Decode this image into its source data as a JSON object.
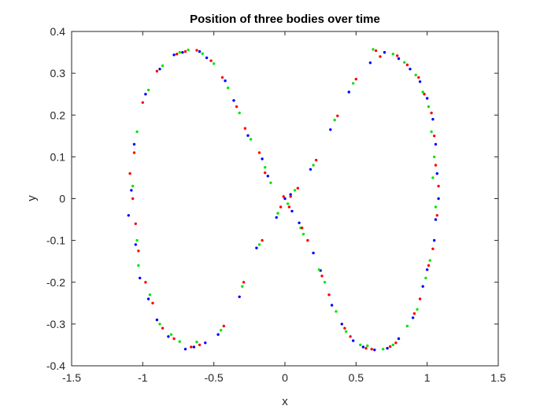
{
  "chart_data": {
    "type": "scatter",
    "title": "Position of three bodies over time",
    "xlabel": "x",
    "ylabel": "y",
    "xlim": [
      -1.5,
      1.5
    ],
    "ylim": [
      -0.4,
      0.4
    ],
    "xticks": [
      -1.5,
      -1,
      -0.5,
      0,
      0.5,
      1,
      1.5
    ],
    "xtick_labels": [
      "-1.5",
      "-1",
      "-0.5",
      "0",
      "0.5",
      "1",
      "1.5"
    ],
    "yticks": [
      -0.4,
      -0.3,
      -0.2,
      -0.1,
      0,
      0.1,
      0.2,
      0.3,
      0.4
    ],
    "ytick_labels": [
      "-0.4",
      "-0.3",
      "-0.2",
      "-0.1",
      "0",
      "0.1",
      "0.2",
      "0.3",
      "0.4"
    ],
    "grid": false,
    "box": true,
    "series": [
      {
        "color": "#0000ff",
        "points": [
          [
            -0.78,
            0.344
          ],
          [
            -0.6,
            0.352
          ],
          [
            -0.42,
            0.282
          ],
          [
            -0.26,
            0.151
          ],
          [
            -0.12,
            0.054
          ],
          [
            0.0,
            0.0
          ],
          [
            0.1,
            -0.058
          ],
          [
            0.25,
            -0.172
          ],
          [
            0.4,
            -0.3
          ],
          [
            0.55,
            -0.355
          ],
          [
            0.72,
            -0.358
          ],
          [
            0.9,
            -0.285
          ],
          [
            1.0,
            -0.17
          ],
          [
            1.06,
            -0.05
          ],
          [
            1.07,
            0.06
          ],
          [
            1.04,
            0.19
          ],
          [
            0.95,
            0.28
          ],
          [
            0.8,
            0.335
          ],
          [
            0.6,
            0.325
          ],
          [
            0.45,
            0.255
          ],
          [
            0.32,
            0.165
          ],
          [
            0.18,
            0.07
          ],
          [
            0.04,
            0.01
          ],
          [
            -0.06,
            -0.045
          ],
          [
            -0.2,
            -0.118
          ],
          [
            -0.32,
            -0.235
          ],
          [
            -0.47,
            -0.325
          ],
          [
            -0.64,
            -0.355
          ],
          [
            -0.82,
            -0.33
          ],
          [
            -0.96,
            -0.24
          ],
          [
            -1.05,
            -0.11
          ],
          [
            -1.08,
            0.02
          ],
          [
            -1.06,
            0.13
          ],
          [
            -0.98,
            0.25
          ],
          [
            -0.88,
            0.31
          ],
          [
            -0.72,
            0.35
          ],
          [
            -0.55,
            0.337
          ],
          [
            -0.36,
            0.235
          ],
          [
            -0.16,
            0.095
          ],
          [
            0.05,
            -0.03
          ],
          [
            0.2,
            -0.13
          ],
          [
            0.33,
            -0.255
          ],
          [
            0.48,
            -0.34
          ],
          [
            0.63,
            -0.362
          ],
          [
            0.8,
            -0.335
          ],
          [
            0.97,
            -0.21
          ],
          [
            1.05,
            -0.1
          ],
          [
            1.08,
            0.0
          ],
          [
            1.06,
            0.13
          ],
          [
            1.0,
            0.24
          ],
          [
            0.88,
            0.31
          ],
          [
            0.7,
            0.35
          ],
          [
            -1.1,
            -0.04
          ],
          [
            -1.02,
            -0.19
          ],
          [
            -0.9,
            -0.29
          ],
          [
            -0.7,
            -0.36
          ],
          [
            -0.56,
            -0.345
          ]
        ]
      },
      {
        "color": "#00e600",
        "points": [
          [
            -0.74,
            0.35
          ],
          [
            -0.58,
            0.347
          ],
          [
            -0.4,
            0.265
          ],
          [
            -0.24,
            0.142
          ],
          [
            -0.1,
            0.038
          ],
          [
            0.02,
            -0.012
          ],
          [
            0.13,
            -0.085
          ],
          [
            0.28,
            -0.2
          ],
          [
            0.43,
            -0.318
          ],
          [
            0.58,
            -0.352
          ],
          [
            0.76,
            -0.35
          ],
          [
            0.93,
            -0.265
          ],
          [
            1.02,
            -0.148
          ],
          [
            1.06,
            -0.02
          ],
          [
            1.05,
            0.1
          ],
          [
            1.01,
            0.22
          ],
          [
            0.92,
            0.296
          ],
          [
            0.76,
            0.346
          ],
          [
            0.62,
            0.357
          ],
          [
            0.48,
            0.276
          ],
          [
            0.35,
            0.188
          ],
          [
            0.2,
            0.08
          ],
          [
            0.07,
            0.02
          ],
          [
            -0.05,
            -0.035
          ],
          [
            -0.18,
            -0.11
          ],
          [
            -0.3,
            -0.21
          ],
          [
            -0.45,
            -0.315
          ],
          [
            -0.62,
            -0.343
          ],
          [
            -0.8,
            -0.325
          ],
          [
            -0.95,
            -0.23
          ],
          [
            -1.04,
            -0.1
          ],
          [
            -1.07,
            0.03
          ],
          [
            -1.04,
            0.16
          ],
          [
            -0.96,
            0.26
          ],
          [
            -0.86,
            0.318
          ],
          [
            -0.68,
            0.356
          ],
          [
            -0.5,
            0.323
          ],
          [
            -0.32,
            0.205
          ],
          [
            -0.14,
            0.075
          ],
          [
            0.11,
            -0.07
          ],
          [
            0.24,
            -0.17
          ],
          [
            0.36,
            -0.27
          ],
          [
            0.53,
            -0.35
          ],
          [
            0.69,
            -0.36
          ],
          [
            0.86,
            -0.305
          ],
          [
            0.99,
            -0.19
          ],
          [
            1.04,
            0.05
          ],
          [
            1.03,
            0.16
          ],
          [
            0.97,
            0.255
          ],
          [
            0.84,
            0.326
          ],
          [
            -1.03,
            -0.16
          ],
          [
            -0.88,
            -0.3
          ],
          [
            -0.74,
            -0.342
          ]
        ]
      },
      {
        "color": "#ff0000",
        "points": [
          [
            -0.76,
            0.346
          ],
          [
            -0.62,
            0.355
          ],
          [
            -0.44,
            0.29
          ],
          [
            -0.28,
            0.168
          ],
          [
            -0.14,
            0.062
          ],
          [
            -0.01,
            0.005
          ],
          [
            0.12,
            -0.07
          ],
          [
            0.26,
            -0.185
          ],
          [
            0.42,
            -0.31
          ],
          [
            0.57,
            -0.358
          ],
          [
            0.74,
            -0.354
          ],
          [
            0.91,
            -0.275
          ],
          [
            1.01,
            -0.16
          ],
          [
            1.07,
            -0.04
          ],
          [
            1.06,
            0.08
          ],
          [
            1.03,
            0.205
          ],
          [
            0.94,
            0.29
          ],
          [
            0.79,
            0.342
          ],
          [
            0.64,
            0.354
          ],
          [
            0.5,
            0.286
          ],
          [
            0.37,
            0.198
          ],
          [
            0.22,
            0.092
          ],
          [
            0.09,
            0.025
          ],
          [
            -0.03,
            -0.02
          ],
          [
            -0.16,
            -0.1
          ],
          [
            -0.29,
            -0.2
          ],
          [
            -0.43,
            -0.305
          ],
          [
            -0.6,
            -0.35
          ],
          [
            -0.78,
            -0.335
          ],
          [
            -0.93,
            -0.25
          ],
          [
            -1.03,
            -0.125
          ],
          [
            -1.07,
            0.0
          ],
          [
            -1.06,
            0.11
          ],
          [
            -1.0,
            0.23
          ],
          [
            -0.9,
            0.305
          ],
          [
            -0.7,
            0.352
          ],
          [
            -0.52,
            0.33
          ],
          [
            -0.34,
            0.22
          ],
          [
            -0.18,
            0.11
          ],
          [
            0.03,
            -0.02
          ],
          [
            0.16,
            -0.1
          ],
          [
            0.31,
            -0.23
          ],
          [
            0.46,
            -0.33
          ],
          [
            0.61,
            -0.36
          ],
          [
            0.78,
            -0.345
          ],
          [
            0.95,
            -0.24
          ],
          [
            1.04,
            -0.12
          ],
          [
            1.08,
            0.03
          ],
          [
            1.05,
            0.15
          ],
          [
            0.98,
            0.25
          ],
          [
            0.86,
            0.32
          ],
          [
            0.67,
            0.34
          ],
          [
            -1.09,
            0.06
          ],
          [
            -1.05,
            -0.06
          ],
          [
            -0.98,
            -0.2
          ],
          [
            -0.86,
            -0.31
          ],
          [
            -0.66,
            -0.355
          ],
          [
            0.04,
            0.005
          ]
        ]
      }
    ]
  }
}
